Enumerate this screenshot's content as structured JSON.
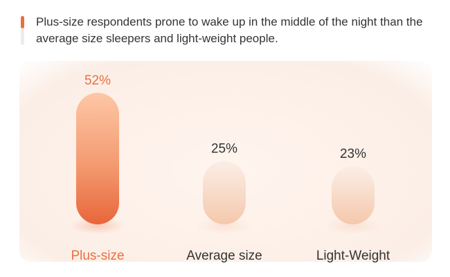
{
  "subtitle": "Plus-size respondents prone to wake up in the middle of the night than the average size sleepers and light-weight people.",
  "colors": {
    "accent": "#e8703f",
    "highlight_label": "#e8703f",
    "default_label": "#333333"
  },
  "chart_data": {
    "type": "bar",
    "categories": [
      "Plus-size",
      "Average size",
      "Light-Weight"
    ],
    "values": [
      52,
      25,
      23
    ],
    "value_labels": [
      "52%",
      "25%",
      "23%"
    ],
    "highlight_index": 0,
    "ylim": [
      0,
      52
    ],
    "title": "",
    "xlabel": "",
    "ylabel": "",
    "grid": false,
    "legend": "none"
  }
}
